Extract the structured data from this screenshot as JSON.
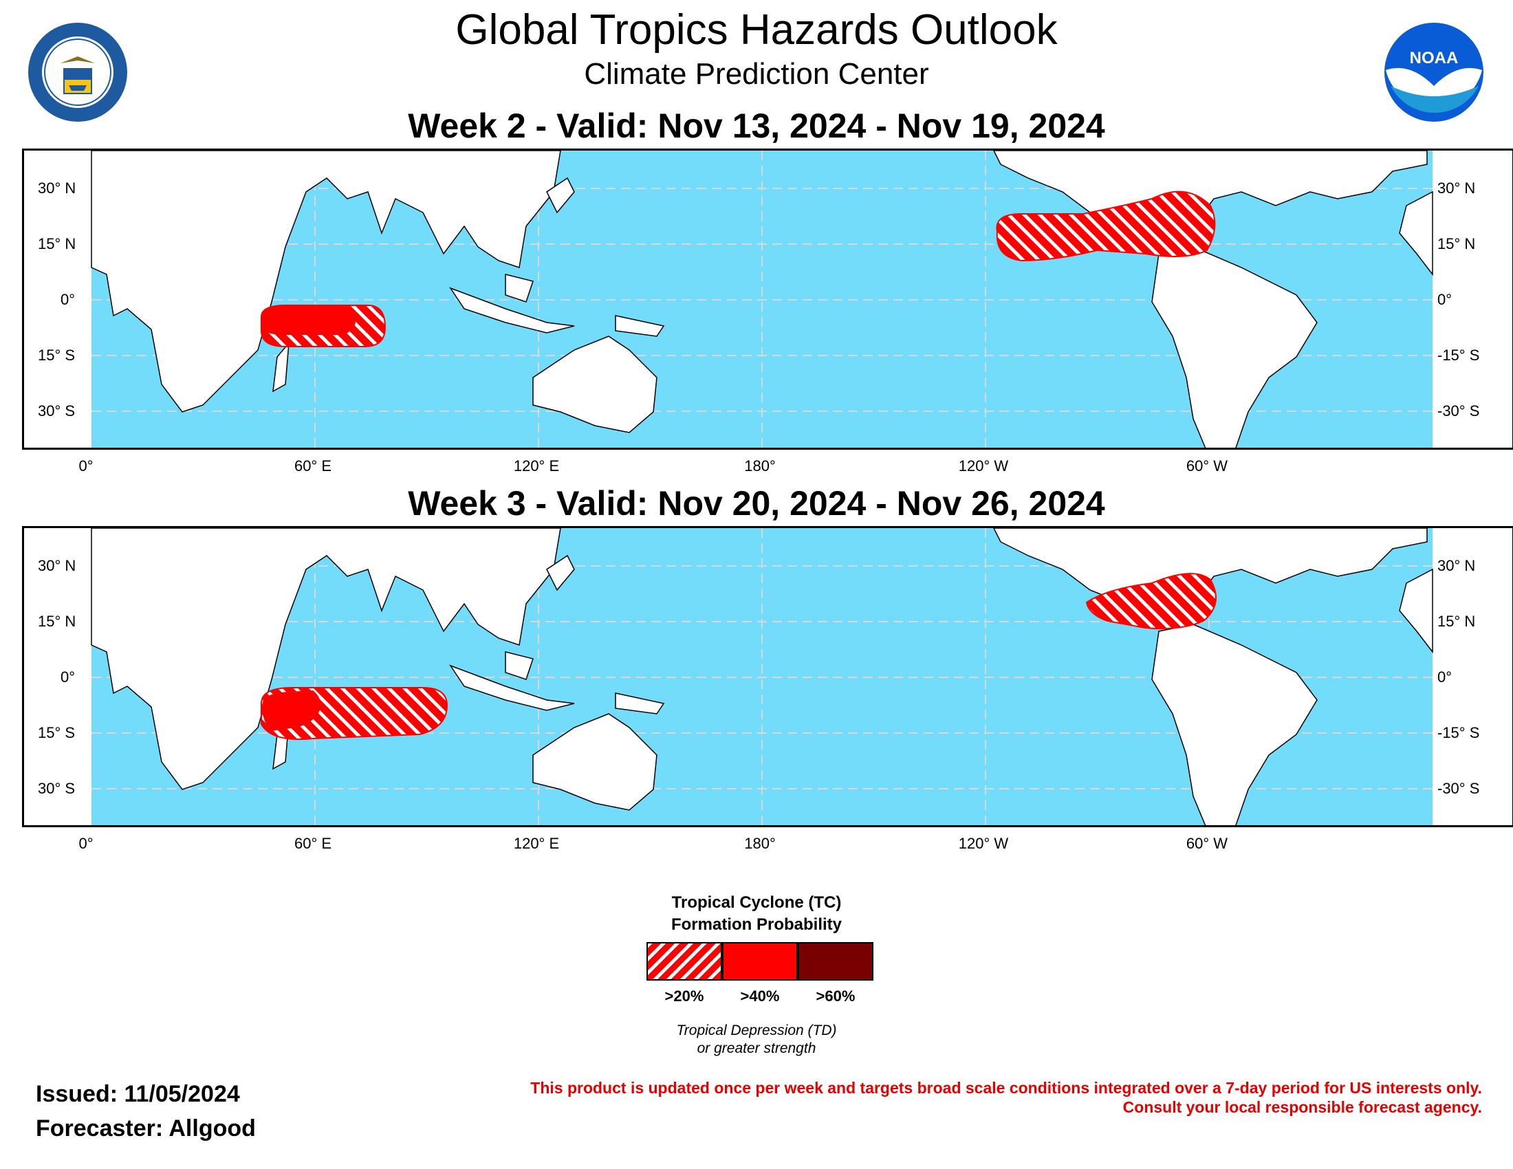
{
  "header": {
    "title": "Global Tropics Hazards Outlook",
    "subtitle": "Climate Prediction Center",
    "doc_logo_text": "DEPARTMENT OF COMMERCE · UNITED STATES OF AMERICA",
    "noaa_logo_text": "NOAA"
  },
  "week2": {
    "title": "Week 2 - Valid: Nov 13, 2024 - Nov 19, 2024"
  },
  "week3": {
    "title": "Week 3 - Valid: Nov 20, 2024 - Nov 26, 2024"
  },
  "axes": {
    "lat_left": [
      "30° N",
      "15° N",
      "0°",
      "15° S",
      "30° S"
    ],
    "lat_right": [
      "30° N",
      "15° N",
      "0°",
      "-15° S",
      "-30° S"
    ],
    "lon": [
      "0°",
      "60° E",
      "120° E",
      "180°",
      "120° W",
      "60° W"
    ]
  },
  "legend": {
    "title_line1": "Tropical Cyclone (TC)",
    "title_line2": "Formation Probability",
    "levels": [
      ">20%",
      ">40%",
      ">60%"
    ],
    "note_line1": "Tropical Depression (TD)",
    "note_line2": "or greater strength"
  },
  "footer": {
    "issued": "Issued: 11/05/2024",
    "forecaster": "Forecaster: Allgood",
    "disclaimer_line1": "This product is updated once per week and targets broad scale conditions integrated over a 7-day period for US interests only.",
    "disclaimer_line2": "Consult your local responsible forecast agency."
  },
  "colors": {
    "ocean": "#73dcfa",
    "land": "#ffffff",
    "hazard_20": "#ff0000",
    "hazard_40": "#ff0000",
    "hazard_60": "#780000",
    "disclaimer": "#e60000"
  }
}
